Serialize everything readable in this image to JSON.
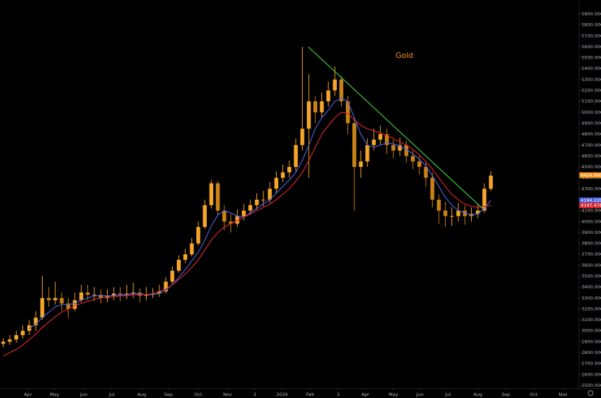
{
  "chart_data": {
    "type": "candlestick",
    "title": "Gold",
    "up_color": "#f5a52a",
    "down_color": "#c98217",
    "open": [
      2880,
      2900,
      2920,
      2960,
      3000,
      3050,
      3120,
      3300,
      3280,
      3300,
      3250,
      3200,
      3280,
      3350,
      3330,
      3330,
      3300,
      3320,
      3340,
      3330,
      3340,
      3350,
      3320,
      3330,
      3340,
      3360,
      3450,
      3550,
      3650,
      3700,
      3800,
      3950,
      4150,
      4350,
      4100,
      4000,
      3980,
      4050,
      4100,
      4150,
      4200,
      4200,
      4300,
      4400,
      4450,
      4500,
      4700,
      4850,
      5100,
      5000,
      5100,
      5200,
      5300,
      5100,
      4900,
      4500,
      4550,
      4700,
      4750,
      4800,
      4700,
      4650,
      4700,
      4600,
      4550,
      4500,
      4400,
      4200,
      4100,
      4050,
      4050,
      4100,
      4050,
      4070,
      4100,
      4300
    ],
    "high": [
      2930,
      2960,
      3000,
      3050,
      3100,
      3180,
      3500,
      3400,
      3450,
      3350,
      3300,
      3350,
      3420,
      3420,
      3400,
      3380,
      3380,
      3400,
      3400,
      3420,
      3440,
      3390,
      3400,
      3390,
      3420,
      3490,
      3590,
      3690,
      3750,
      3850,
      4000,
      4200,
      4380,
      4370,
      4150,
      4070,
      4110,
      4160,
      4200,
      4260,
      4280,
      4360,
      4460,
      4520,
      4560,
      4760,
      5600,
      5350,
      5150,
      5180,
      5280,
      5420,
      5330,
      5150,
      4950,
      4650,
      4760,
      4850,
      4880,
      4850,
      4750,
      4770,
      4740,
      4650,
      4600,
      4540,
      4450,
      4250,
      4180,
      4130,
      4170,
      4150,
      4130,
      4160,
      4350,
      4460
    ],
    "low": [
      2850,
      2870,
      2890,
      2930,
      2960,
      3000,
      3100,
      3220,
      3240,
      3180,
      3120,
      3180,
      3260,
      3280,
      3270,
      3250,
      3260,
      3280,
      3270,
      3290,
      3300,
      3260,
      3280,
      3300,
      3310,
      3340,
      3430,
      3530,
      3620,
      3680,
      3780,
      3930,
      4120,
      4050,
      3920,
      3900,
      3950,
      4010,
      4060,
      4110,
      4140,
      4170,
      4260,
      4360,
      4400,
      4460,
      4650,
      4400,
      4900,
      4950,
      5050,
      5150,
      5050,
      4800,
      4100,
      4400,
      4500,
      4650,
      4700,
      4620,
      4580,
      4600,
      4540,
      4480,
      4430,
      4320,
      4130,
      3980,
      3950,
      3960,
      4000,
      3970,
      4000,
      4030,
      4080,
      4280
    ],
    "close": [
      2900,
      2920,
      2960,
      3000,
      3050,
      3120,
      3300,
      3280,
      3300,
      3250,
      3200,
      3280,
      3350,
      3330,
      3330,
      3300,
      3320,
      3340,
      3330,
      3340,
      3350,
      3320,
      3330,
      3340,
      3360,
      3450,
      3550,
      3650,
      3700,
      3800,
      3950,
      4150,
      4350,
      4100,
      4000,
      3980,
      4050,
      4100,
      4150,
      4200,
      4200,
      4300,
      4400,
      4450,
      4500,
      4700,
      4850,
      5100,
      5000,
      5100,
      5200,
      5300,
      5100,
      4900,
      4500,
      4550,
      4700,
      4750,
      4800,
      4700,
      4650,
      4700,
      4600,
      4550,
      4500,
      4400,
      4200,
      4100,
      4050,
      4050,
      4100,
      4050,
      4070,
      4100,
      4300,
      4420
    ],
    "series": [
      {
        "color": "#4a5fe0",
        "values": [
          null,
          null,
          null,
          null,
          3020,
          3060,
          3120,
          3170,
          3220,
          3240,
          3240,
          3250,
          3280,
          3300,
          3320,
          3320,
          3320,
          3320,
          3330,
          3330,
          3340,
          3340,
          3330,
          3330,
          3340,
          3370,
          3420,
          3490,
          3560,
          3640,
          3720,
          3830,
          3960,
          4060,
          4100,
          4080,
          4050,
          4040,
          4080,
          4120,
          4160,
          4200,
          4260,
          4320,
          4380,
          4450,
          4560,
          4700,
          4850,
          4950,
          5020,
          5100,
          5130,
          5100,
          4950,
          4800,
          4700,
          4680,
          4700,
          4720,
          4710,
          4690,
          4660,
          4620,
          4570,
          4510,
          4420,
          4320,
          4220,
          4150,
          4100,
          4080,
          4060,
          4070,
          4120,
          4194
        ]
      },
      {
        "color": "#d8262e",
        "values": [
          2770,
          2800,
          2830,
          2870,
          2920,
          2970,
          3030,
          3080,
          3130,
          3170,
          3200,
          3230,
          3250,
          3270,
          3290,
          3300,
          3310,
          3310,
          3320,
          3320,
          3330,
          3330,
          3330,
          3340,
          3360,
          3380,
          3420,
          3470,
          3520,
          3580,
          3650,
          3740,
          3830,
          3900,
          3950,
          3980,
          4010,
          4040,
          4070,
          4100,
          4130,
          4160,
          4200,
          4250,
          4300,
          4370,
          4450,
          4560,
          4680,
          4800,
          4880,
          4950,
          5000,
          4990,
          4930,
          4880,
          4850,
          4830,
          4810,
          4790,
          4760,
          4730,
          4700,
          4660,
          4610,
          4550,
          4480,
          4400,
          4320,
          4250,
          4200,
          4160,
          4140,
          4130,
          4140,
          4147
        ]
      }
    ],
    "trendline": {
      "color": "#3ecf3e",
      "x": [
        46.9,
        73.7
      ],
      "values": [
        5600,
        4120
      ]
    },
    "price_tags": [
      {
        "value": 4424.99,
        "label": "4424.9900",
        "color": "#f7931a"
      },
      {
        "value": 4194.2205,
        "label": "4194.2205",
        "color": "#4a5fe0"
      },
      {
        "value": 4147.4781,
        "label": "4147.4781",
        "color": "#d8262e"
      }
    ],
    "xlim": [
      -0.5,
      88.5
    ],
    "xticks": [
      {
        "value": 3.8,
        "label": "Apr"
      },
      {
        "value": 7.9,
        "label": "May"
      },
      {
        "value": 12.4,
        "label": "Jun"
      },
      {
        "value": 16.7,
        "label": "Jul"
      },
      {
        "value": 21.3,
        "label": "Aug"
      },
      {
        "value": 25.4,
        "label": "Sep"
      },
      {
        "value": 30.0,
        "label": "Oct"
      },
      {
        "value": 34.5,
        "label": "Nov"
      },
      {
        "value": 38.7,
        "label": "2"
      },
      {
        "value": 42.9,
        "label": "2026"
      },
      {
        "value": 47.2,
        "label": "Feb"
      },
      {
        "value": 51.5,
        "label": "3"
      },
      {
        "value": 55.7,
        "label": "Apr"
      },
      {
        "value": 60.0,
        "label": "May"
      },
      {
        "value": 64.1,
        "label": "Jun"
      },
      {
        "value": 68.4,
        "label": "Jul"
      },
      {
        "value": 73.0,
        "label": "Aug"
      },
      {
        "value": 77.3,
        "label": "Sep"
      },
      {
        "value": 81.6,
        "label": "Oct"
      },
      {
        "value": 86.1,
        "label": "Nov"
      }
    ],
    "ylim": [
      2474,
      6028
    ],
    "yticks": [
      {
        "value": 2500,
        "label": "2500.0000"
      },
      {
        "value": 2600,
        "label": "2600.0000"
      },
      {
        "value": 2700,
        "label": "2700.0000"
      },
      {
        "value": 2800,
        "label": "2800.0000"
      },
      {
        "value": 2900,
        "label": "2900.0000"
      },
      {
        "value": 3000,
        "label": "3000.0000"
      },
      {
        "value": 3100,
        "label": "3100.0000"
      },
      {
        "value": 3200,
        "label": "3200.0000"
      },
      {
        "value": 3300,
        "label": "3300.0000"
      },
      {
        "value": 3400,
        "label": "3400.0000"
      },
      {
        "value": 3500,
        "label": "3500.0000"
      },
      {
        "value": 3600,
        "label": "3600.0000"
      },
      {
        "value": 3700,
        "label": "3700.0000"
      },
      {
        "value": 3800,
        "label": "3800.0000"
      },
      {
        "value": 3900,
        "label": "3900.0000"
      },
      {
        "value": 4000,
        "label": "4000.0000"
      },
      {
        "value": 4100,
        "label": "4100.0000"
      },
      {
        "value": 4200,
        "label": "4200.0000"
      },
      {
        "value": 4300,
        "label": "4300.0000"
      },
      {
        "value": 4400,
        "label": "4400.0000"
      },
      {
        "value": 4500,
        "label": "4500.0000"
      },
      {
        "value": 4600,
        "label": "4600.0000"
      },
      {
        "value": 4700,
        "label": "4700.0000"
      },
      {
        "value": 4800,
        "label": "4800.0000"
      },
      {
        "value": 4900,
        "label": "4900.0000"
      },
      {
        "value": 5000,
        "label": "5000.0000"
      },
      {
        "value": 5100,
        "label": "5100.0000"
      },
      {
        "value": 5200,
        "label": "5200.0000"
      },
      {
        "value": 5300,
        "label": "5300.0000"
      },
      {
        "value": 5400,
        "label": "5400.0000"
      },
      {
        "value": 5500,
        "label": "5500.0000"
      },
      {
        "value": 5600,
        "label": "5600.0000"
      },
      {
        "value": 5700,
        "label": "5700.0000"
      },
      {
        "value": 5800,
        "label": "5800.0000"
      },
      {
        "value": 5900,
        "label": "5900.0000"
      }
    ]
  }
}
